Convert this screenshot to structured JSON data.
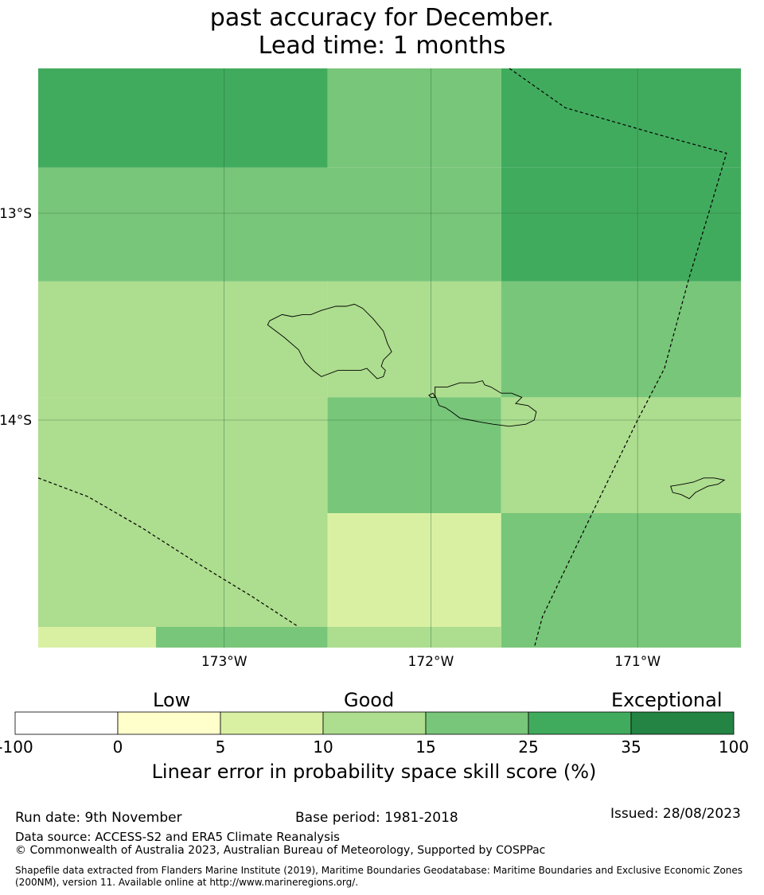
{
  "title": {
    "line1": "past accuracy for December.",
    "line2": "Lead time: 1 months"
  },
  "map": {
    "lon_labels": [
      "173°W",
      "172°W",
      "171°W"
    ],
    "lat_labels": [
      "13°S",
      "14°S"
    ],
    "lon_range": [
      -173.9,
      -170.5
    ],
    "lat_range": [
      -12.3,
      -15.1
    ],
    "grid_lons": [
      -173,
      -172,
      -171
    ],
    "grid_lats": [
      -13,
      -14
    ],
    "cells": [
      {
        "lon": [
          -173.9,
          -172.5
        ],
        "lat": [
          -12.3,
          -12.78
        ],
        "cat": 5
      },
      {
        "lon": [
          -172.5,
          -171.66
        ],
        "lat": [
          -12.3,
          -12.78
        ],
        "cat": 4
      },
      {
        "lon": [
          -171.66,
          -170.5
        ],
        "lat": [
          -12.3,
          -12.78
        ],
        "cat": 5
      },
      {
        "lon": [
          -173.9,
          -171.66
        ],
        "lat": [
          -12.78,
          -13.33
        ],
        "cat": 4
      },
      {
        "lon": [
          -171.66,
          -170.5
        ],
        "lat": [
          -12.78,
          -13.33
        ],
        "cat": 5
      },
      {
        "lon": [
          -173.9,
          -172.5
        ],
        "lat": [
          -13.33,
          -13.89
        ],
        "cat": 3
      },
      {
        "lon": [
          -172.5,
          -171.66
        ],
        "lat": [
          -13.33,
          -13.89
        ],
        "cat": 3
      },
      {
        "lon": [
          -171.66,
          -170.5
        ],
        "lat": [
          -13.33,
          -13.89
        ],
        "cat": 4
      },
      {
        "lon": [
          -173.9,
          -172.5
        ],
        "lat": [
          -13.89,
          -14.45
        ],
        "cat": 3
      },
      {
        "lon": [
          -172.5,
          -171.66
        ],
        "lat": [
          -13.89,
          -14.45
        ],
        "cat": 4
      },
      {
        "lon": [
          -171.66,
          -170.5
        ],
        "lat": [
          -13.89,
          -14.45
        ],
        "cat": 3
      },
      {
        "lon": [
          -173.9,
          -172.5
        ],
        "lat": [
          -14.45,
          -15.0
        ],
        "cat": 3
      },
      {
        "lon": [
          -172.5,
          -171.66
        ],
        "lat": [
          -14.45,
          -15.0
        ],
        "cat": 2
      },
      {
        "lon": [
          -171.66,
          -170.5
        ],
        "lat": [
          -14.45,
          -15.1
        ],
        "cat": 4
      },
      {
        "lon": [
          -173.9,
          -173.33
        ],
        "lat": [
          -15.0,
          -15.1
        ],
        "cat": 2
      },
      {
        "lon": [
          -173.33,
          -172.5
        ],
        "lat": [
          -15.0,
          -15.1
        ],
        "cat": 4
      },
      {
        "lon": [
          -172.5,
          -171.66
        ],
        "lat": [
          -15.0,
          -15.1
        ],
        "cat": 3
      }
    ],
    "islands": [
      [
        [
          -172.78,
          -13.52
        ],
        [
          -172.72,
          -13.49
        ],
        [
          -172.67,
          -13.5
        ],
        [
          -172.62,
          -13.49
        ],
        [
          -172.58,
          -13.49
        ],
        [
          -172.53,
          -13.47
        ],
        [
          -172.46,
          -13.45
        ],
        [
          -172.41,
          -13.45
        ],
        [
          -172.37,
          -13.44
        ],
        [
          -172.33,
          -13.46
        ],
        [
          -172.28,
          -13.51
        ],
        [
          -172.23,
          -13.57
        ],
        [
          -172.21,
          -13.63
        ],
        [
          -172.19,
          -13.67
        ],
        [
          -172.23,
          -13.71
        ],
        [
          -172.24,
          -13.74
        ],
        [
          -172.22,
          -13.76
        ],
        [
          -172.23,
          -13.79
        ],
        [
          -172.26,
          -13.8
        ],
        [
          -172.29,
          -13.77
        ],
        [
          -172.31,
          -13.75
        ],
        [
          -172.34,
          -13.76
        ],
        [
          -172.45,
          -13.76
        ],
        [
          -172.53,
          -13.79
        ],
        [
          -172.57,
          -13.76
        ],
        [
          -172.61,
          -13.72
        ],
        [
          -172.64,
          -13.66
        ],
        [
          -172.71,
          -13.6
        ],
        [
          -172.79,
          -13.54
        ],
        [
          -172.78,
          -13.52
        ]
      ],
      [
        [
          -171.98,
          -13.84
        ],
        [
          -171.92,
          -13.84
        ],
        [
          -171.86,
          -13.82
        ],
        [
          -171.79,
          -13.82
        ],
        [
          -171.75,
          -13.81
        ],
        [
          -171.74,
          -13.83
        ],
        [
          -171.71,
          -13.84
        ],
        [
          -171.66,
          -13.87
        ],
        [
          -171.61,
          -13.87
        ],
        [
          -171.56,
          -13.89
        ],
        [
          -171.59,
          -13.92
        ],
        [
          -171.53,
          -13.93
        ],
        [
          -171.49,
          -13.96
        ],
        [
          -171.5,
          -14.0
        ],
        [
          -171.54,
          -14.02
        ],
        [
          -171.62,
          -14.03
        ],
        [
          -171.7,
          -14.02
        ],
        [
          -171.76,
          -14.01
        ],
        [
          -171.81,
          -14.0
        ],
        [
          -171.86,
          -13.99
        ],
        [
          -171.9,
          -13.96
        ],
        [
          -171.93,
          -13.94
        ],
        [
          -171.96,
          -13.93
        ],
        [
          -171.98,
          -13.88
        ],
        [
          -171.98,
          -13.84
        ]
      ],
      [
        [
          -170.84,
          -14.32
        ],
        [
          -170.78,
          -14.31
        ],
        [
          -170.73,
          -14.3
        ],
        [
          -170.68,
          -14.28
        ],
        [
          -170.63,
          -14.28
        ],
        [
          -170.58,
          -14.29
        ],
        [
          -170.61,
          -14.31
        ],
        [
          -170.66,
          -14.32
        ],
        [
          -170.72,
          -14.35
        ],
        [
          -170.75,
          -14.38
        ],
        [
          -170.79,
          -14.36
        ],
        [
          -170.83,
          -14.35
        ],
        [
          -170.84,
          -14.32
        ]
      ],
      [
        [
          -172.01,
          -13.88
        ],
        [
          -171.99,
          -13.87
        ],
        [
          -171.98,
          -13.89
        ],
        [
          -172.0,
          -13.89
        ],
        [
          -172.01,
          -13.88
        ]
      ]
    ],
    "boundaries": [
      [
        [
          -173.9,
          -14.28
        ],
        [
          -173.66,
          -14.37
        ],
        [
          -173.4,
          -14.52
        ],
        [
          -173.15,
          -14.68
        ],
        [
          -172.87,
          -14.85
        ],
        [
          -172.64,
          -15.0
        ]
      ],
      [
        [
          -171.62,
          -12.3
        ],
        [
          -171.35,
          -12.49
        ],
        [
          -170.9,
          -12.62
        ],
        [
          -170.57,
          -12.71
        ],
        [
          -170.65,
          -12.98
        ],
        [
          -170.75,
          -13.31
        ],
        [
          -170.87,
          -13.75
        ],
        [
          -171.0,
          -14.0
        ],
        [
          -171.2,
          -14.41
        ],
        [
          -171.46,
          -14.95
        ],
        [
          -171.5,
          -15.1
        ]
      ]
    ]
  },
  "colorbar": {
    "category_labels": {
      "low": "Low",
      "good": "Good",
      "exceptional": "Exceptional"
    },
    "ticks": [
      "-100",
      "0",
      "5",
      "10",
      "15",
      "25",
      "35",
      "100"
    ],
    "colors": [
      "#ffffff",
      "#ffffcc",
      "#d9f0a3",
      "#addd8e",
      "#78c679",
      "#41ab5d",
      "#238443"
    ],
    "title": "Linear error in probability space skill score (%)"
  },
  "footer": {
    "run_date": "Run date: 9th November",
    "base_period": "Base period: 1981-2018",
    "issued": "Issued: 28/08/2023",
    "data_source": "Data source: ACCESS-S2 and ERA5 Climate Reanalysis",
    "copyright": "© Commonwealth of Australia 2023, Australian Bureau of Meteorology, Supported by COSPPac",
    "shapefile": "Shapefile data extracted from Flanders Marine Institute (2019), Maritime Boundaries Geodatabase: Maritime Boundaries and Exclusive Economic Zones (200NM), version 11. Available online at http://www.marineregions.org/."
  }
}
